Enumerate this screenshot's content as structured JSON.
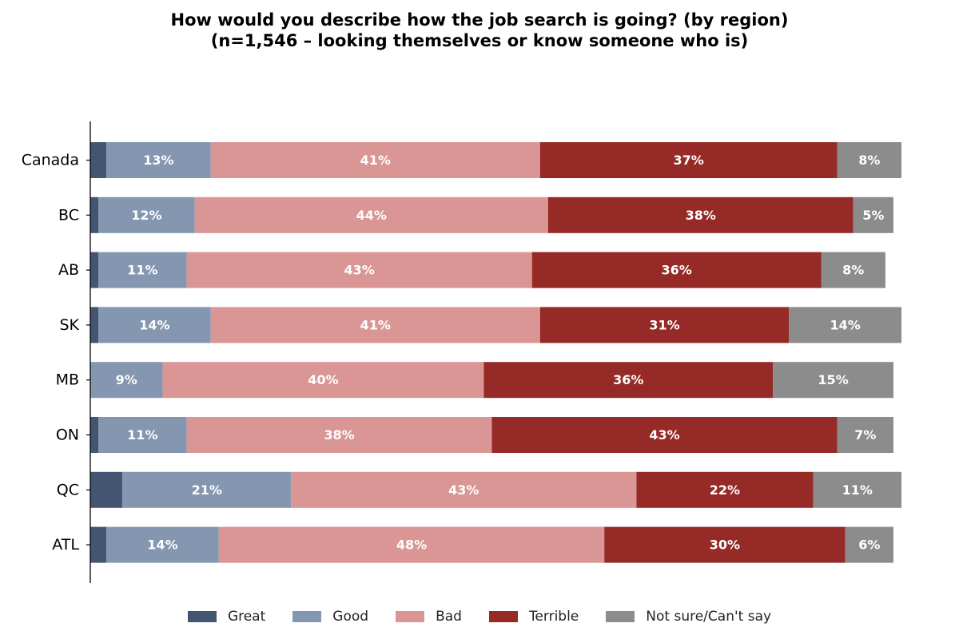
{
  "chart_data": {
    "type": "bar",
    "orientation": "horizontal",
    "stacked": true,
    "title_line1": "How would you describe how the job search is going? (by region)",
    "title_line2": "(n=1,546 – looking themselves or know someone who is)",
    "categories": [
      "Canada",
      "BC",
      "AB",
      "SK",
      "MB",
      "ON",
      "QC",
      "ATL"
    ],
    "series": [
      {
        "name": "Great",
        "color": "#435570",
        "values": [
          2,
          1,
          1,
          1,
          0,
          1,
          4,
          2
        ],
        "labels": [
          "",
          "",
          "",
          "",
          "",
          "",
          "",
          ""
        ]
      },
      {
        "name": "Good",
        "color": "#8496b0",
        "values": [
          13,
          12,
          11,
          14,
          9,
          11,
          21,
          14
        ],
        "labels": [
          "13%",
          "12%",
          "11%",
          "14%",
          "9%",
          "11%",
          "21%",
          "14%"
        ]
      },
      {
        "name": "Bad",
        "color": "#d99694",
        "values": [
          41,
          44,
          43,
          41,
          40,
          38,
          43,
          48
        ],
        "labels": [
          "41%",
          "44%",
          "43%",
          "41%",
          "40%",
          "38%",
          "43%",
          "48%"
        ]
      },
      {
        "name": "Terrible",
        "color": "#952a27",
        "values": [
          37,
          38,
          36,
          31,
          36,
          43,
          22,
          30
        ],
        "labels": [
          "37%",
          "38%",
          "36%",
          "31%",
          "36%",
          "43%",
          "22%",
          "30%"
        ]
      },
      {
        "name": "Not sure/Can't say",
        "color": "#8c8c8c",
        "values": [
          8,
          5,
          8,
          14,
          15,
          7,
          11,
          6
        ],
        "labels": [
          "8%",
          "5%",
          "8%",
          "14%",
          "15%",
          "7%",
          "11%",
          "6%"
        ]
      }
    ],
    "xlim": [
      0,
      101
    ],
    "grid": false,
    "legend_position": "bottom"
  }
}
